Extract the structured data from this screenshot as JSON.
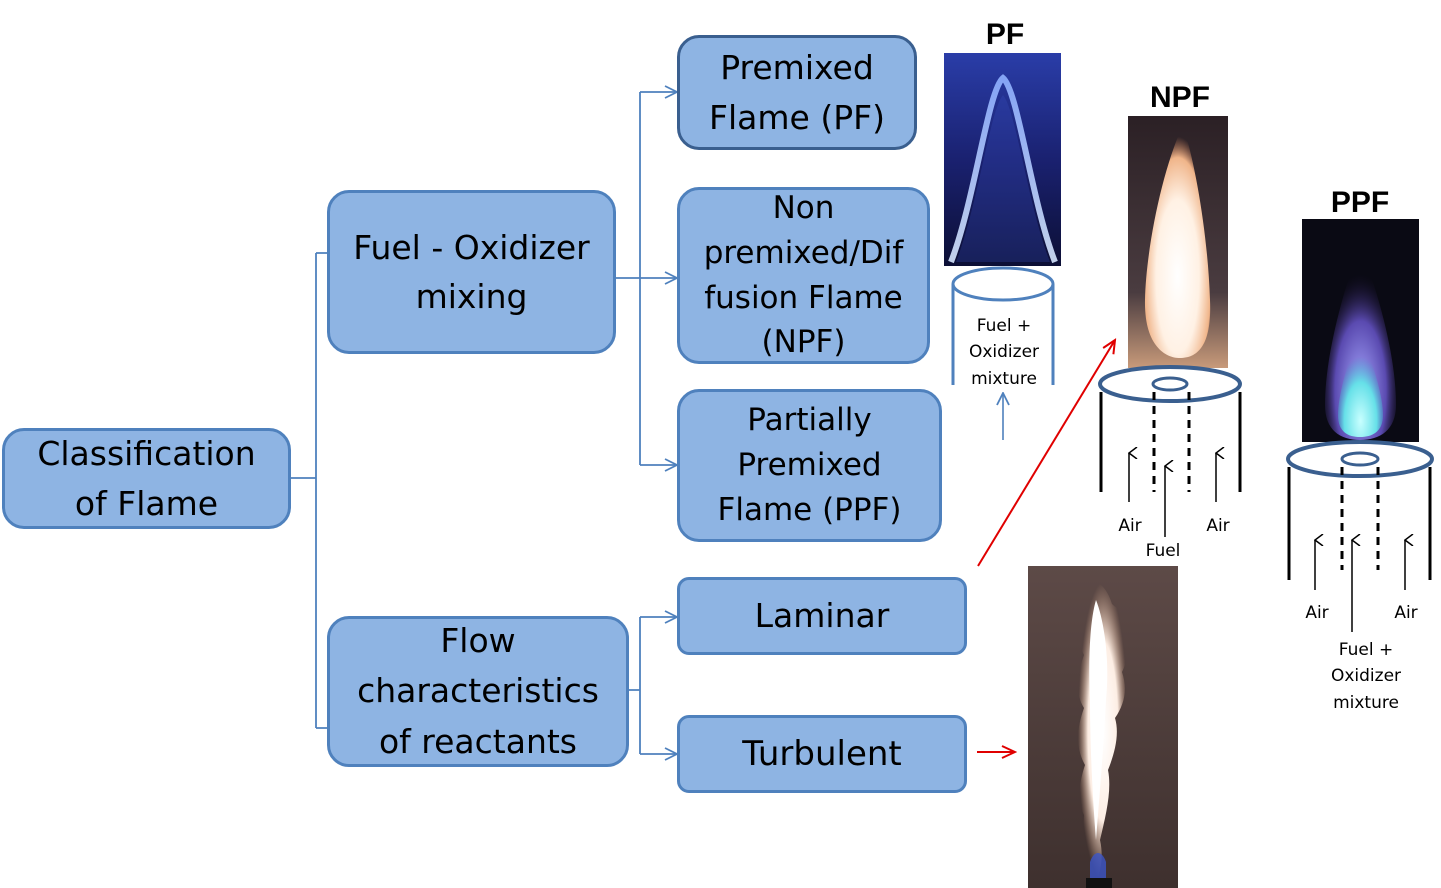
{
  "colors": {
    "box_fill": "#8eb4e3",
    "box_border": "#4f81bd",
    "connector": "#4f81bd",
    "highlight_arrow": "#e00000"
  },
  "root": {
    "label": "Classification\nof Flame"
  },
  "branches": {
    "mixing": {
      "label": "Fuel - Oxidizer\nmixing"
    },
    "flow": {
      "label": "Flow\ncharacteristics\nof reactants"
    }
  },
  "leaves": {
    "pf": {
      "label": "Premixed\nFlame (PF)"
    },
    "npf": {
      "label": "Non\npremixed/Dif\nfusion Flame\n(NPF)"
    },
    "ppf": {
      "label": "Partially\nPremixed\nFlame (PPF)"
    },
    "laminar": {
      "label": "Laminar"
    },
    "turbulent": {
      "label": "Turbulent"
    }
  },
  "illustrations": {
    "pf": {
      "title": "PF",
      "inlet_label": "Fuel +\nOxidizer\nmixture"
    },
    "npf": {
      "title": "NPF",
      "air_left": "Air",
      "air_right": "Air",
      "fuel": "Fuel"
    },
    "ppf": {
      "title": "PPF",
      "air_left": "Air",
      "air_right": "Air",
      "inlet_label": "Fuel +\nOxidizer\nmixture"
    }
  }
}
